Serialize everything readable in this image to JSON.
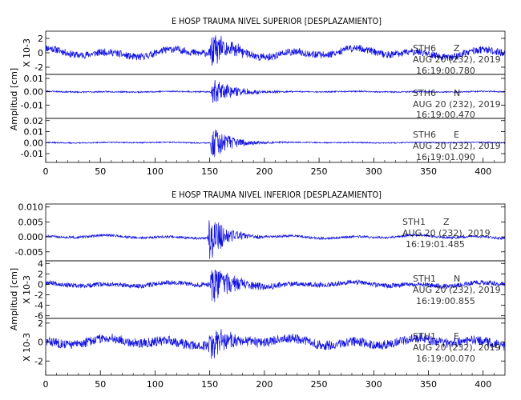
{
  "colors": {
    "trace": "#1010e0",
    "axis": "#000000",
    "background": "#ffffff"
  },
  "chart_data": [
    {
      "type": "line",
      "title": "E HOSP TRAUMA NIVEL SUPERIOR [DESPLAZAMIENTO]",
      "ylabel": "Amplitud [cm]",
      "xlim": [
        0,
        420
      ],
      "x_ticks": [
        0,
        50,
        100,
        150,
        200,
        250,
        300,
        350,
        400
      ],
      "grid": false,
      "panels": [
        {
          "station": "STH6",
          "component": "Z",
          "date": "AUG 20 (232), 2019",
          "time": "16:19:00.780",
          "scale_label": "X 10-3",
          "ylim": [
            -3,
            3
          ],
          "y_ticks": [
            -2,
            0,
            2
          ],
          "y_tick_labels": [
            "-2",
            "0",
            "2"
          ],
          "trace": {
            "event_x": 152,
            "peak": 2.8,
            "noise": 0.5,
            "wander": 0.6,
            "decay": 18,
            "seed": 11
          }
        },
        {
          "station": "STH6",
          "component": "N",
          "date": "AUG 20 (232), 2019",
          "time": "16:19:00.470",
          "scale_label": "",
          "ylim": [
            -0.02,
            0.013
          ],
          "y_ticks": [
            -0.01,
            0.0,
            0.01
          ],
          "y_tick_labels": [
            "-0.01",
            "0.00",
            "0.01"
          ],
          "trace": {
            "event_x": 153,
            "peak": 0.011,
            "noise": 0.0005,
            "wander": 0.0003,
            "decay": 20,
            "seed": 23
          }
        },
        {
          "station": "STH6",
          "component": "E",
          "date": "AUG 20 (232), 2019",
          "time": "16:19:01.090",
          "scale_label": "",
          "ylim": [
            -0.018,
            0.022
          ],
          "y_ticks": [
            -0.01,
            0.0,
            0.01,
            0.02
          ],
          "y_tick_labels": [
            "-0.01",
            "0.00",
            "0.01",
            "0.02"
          ],
          "trace": {
            "event_x": 152,
            "peak": 0.017,
            "noise": 0.0005,
            "wander": 0.0003,
            "decay": 18,
            "seed": 37
          }
        }
      ]
    },
    {
      "type": "line",
      "title": "E HOSP TRAUMA NIVEL INFERIOR [DESPLAZAMIENTO]",
      "ylabel": "Amplitud [cm]",
      "xlim": [
        0,
        420
      ],
      "x_ticks": [
        0,
        50,
        100,
        150,
        200,
        250,
        300,
        350,
        400
      ],
      "grid": false,
      "panels": [
        {
          "station": "STH1",
          "component": "Z",
          "date": "AUG 20 (232), 2019",
          "time": "16:19:01.485",
          "scale_label": "",
          "ylim": [
            -0.008,
            0.011
          ],
          "y_ticks": [
            -0.005,
            0.0,
            0.005,
            0.01
          ],
          "y_tick_labels": [
            "-0.005",
            "0.000",
            "0.005",
            "0.010"
          ],
          "trace": {
            "event_x": 150,
            "peak": 0.01,
            "noise": 0.0004,
            "wander": 0.0005,
            "decay": 14,
            "seed": 51
          }
        },
        {
          "station": "STH1",
          "component": "N",
          "date": "AUG 20 (232), 2019",
          "time": "16:19:00.855",
          "scale_label": "X 10-3",
          "ylim": [
            -6.5,
            4.5
          ],
          "y_ticks": [
            -6,
            -4,
            -2,
            0,
            2,
            4
          ],
          "y_tick_labels": [
            "-6",
            "-4",
            "-2",
            "0",
            "2",
            "4"
          ],
          "trace": {
            "event_x": 152,
            "peak": 4.0,
            "noise": 0.45,
            "wander": 0.4,
            "decay": 20,
            "seed": 67
          }
        },
        {
          "station": "STH1",
          "component": "E",
          "date": "AUG 20 (232), 2019",
          "time": "16:19:00.070",
          "scale_label": "X 10-3",
          "ylim": [
            -3.5,
            2.5
          ],
          "y_ticks": [
            -2,
            0,
            2
          ],
          "y_tick_labels": [
            "-2",
            "0",
            "2"
          ],
          "trace": {
            "event_x": 150,
            "peak": 2.0,
            "noise": 0.5,
            "wander": 0.4,
            "decay": 16,
            "seed": 83
          }
        }
      ]
    }
  ]
}
